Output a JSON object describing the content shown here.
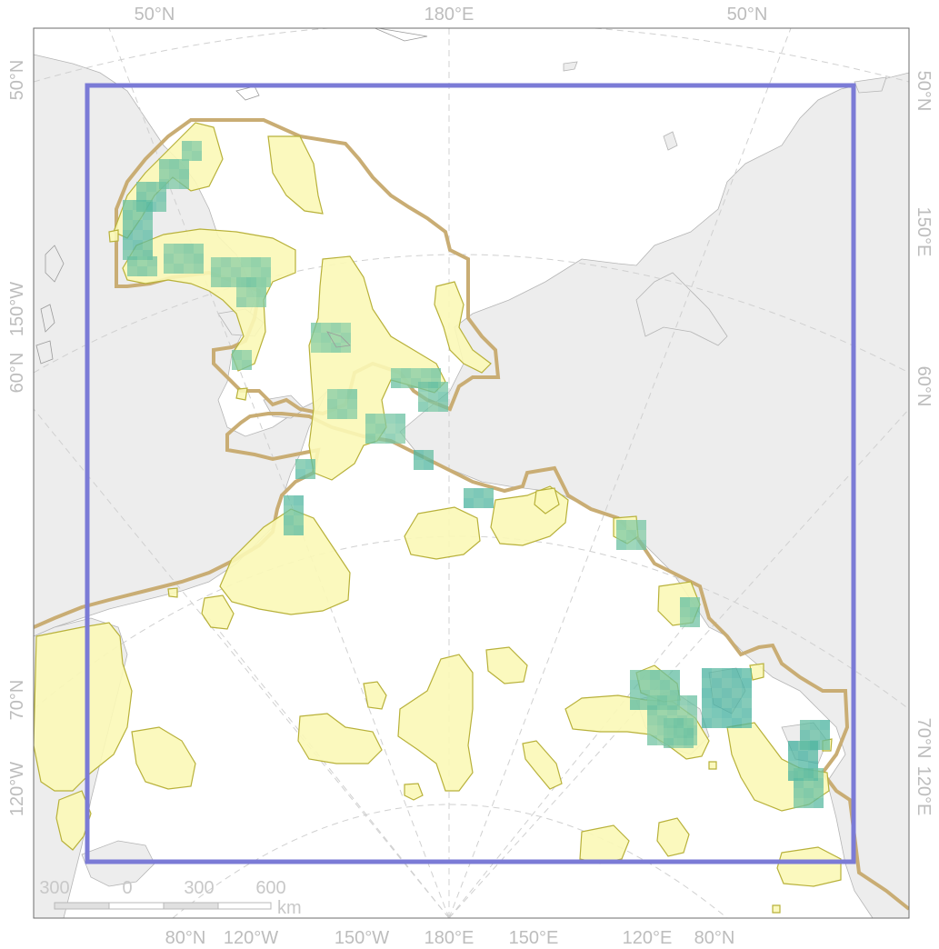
{
  "map": {
    "colors": {
      "land": "#ededed",
      "coast": "#b5b5b5",
      "graticule": "#d0d0d0",
      "study_area": "#7b7bd6",
      "boundary": "#c9ad74",
      "habitat_fill": "#fbf8b7",
      "habitat_stroke": "#b8b13a",
      "cell_low": "#8fd0a6",
      "cell_high": "#3fae9e"
    },
    "labels": {
      "top": [
        "50°N",
        "180°E",
        "50°N"
      ],
      "left": [
        "50°N",
        "150°W",
        "60°N",
        "70°N",
        "120°W"
      ],
      "right": [
        "50°N",
        "150°E",
        "60°N",
        "70°N",
        "120°E"
      ],
      "bottom": [
        "80°N",
        "120°W",
        "150°W",
        "180°E",
        "150°E",
        "120°E",
        "80°N"
      ]
    },
    "scale_bar": {
      "ticks": [
        "300",
        "0",
        "300",
        "600"
      ],
      "unit": "km"
    }
  }
}
